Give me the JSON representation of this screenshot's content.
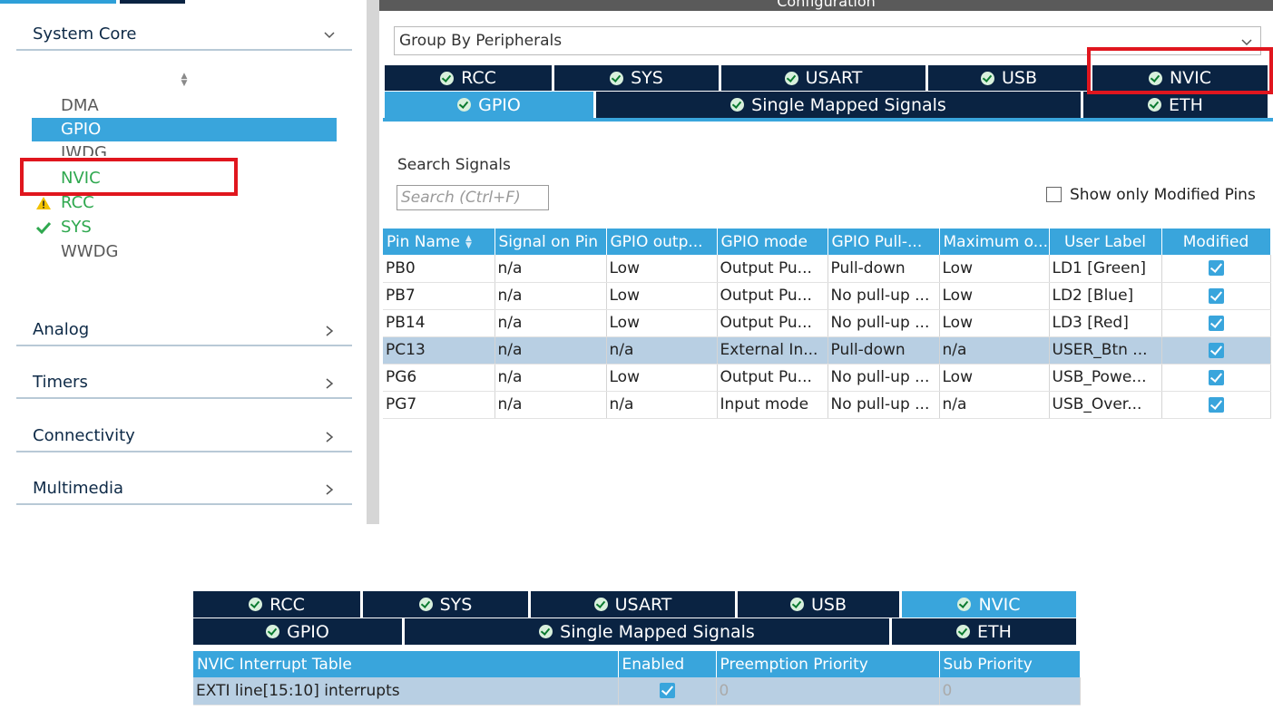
{
  "sidebar": {
    "system_core": "System Core",
    "core_items": [
      {
        "label": "DMA",
        "status": "none"
      },
      {
        "label": "GPIO",
        "status": "selected"
      },
      {
        "label": "IWDG",
        "status": "none"
      },
      {
        "label": "NVIC",
        "status": "ok"
      },
      {
        "label": "RCC",
        "status": "warning"
      },
      {
        "label": "SYS",
        "status": "ok"
      },
      {
        "label": "WWDG",
        "status": "none"
      }
    ],
    "categories": [
      "Analog",
      "Timers",
      "Connectivity",
      "Multimedia"
    ]
  },
  "config": {
    "title": "Configuration",
    "group_by": "Group By Peripherals",
    "tabs_row1": [
      "RCC",
      "SYS",
      "USART",
      "USB",
      "NVIC"
    ],
    "tabs_row2": [
      "GPIO",
      "Single Mapped Signals",
      "ETH"
    ],
    "active_tab": "GPIO",
    "search_label": "Search Signals",
    "search_placeholder": "Search (Ctrl+F)",
    "show_modified": "Show only Modified Pins",
    "columns": [
      "Pin Name",
      "Signal on Pin",
      "GPIO outp...",
      "GPIO mode",
      "GPIO Pull-...",
      "Maximum o...",
      "User Label",
      "Modified"
    ],
    "rows": [
      [
        "PB0",
        "n/a",
        "Low",
        "Output Pu...",
        "Pull-down",
        "Low",
        "LD1 [Green]"
      ],
      [
        "PB7",
        "n/a",
        "Low",
        "Output Pu...",
        "No pull-up ...",
        "Low",
        "LD2 [Blue]"
      ],
      [
        "PB14",
        "n/a",
        "Low",
        "Output Pu...",
        "No pull-up ...",
        "Low",
        "LD3 [Red]"
      ],
      [
        "PC13",
        "n/a",
        "n/a",
        "External In...",
        "Pull-down",
        "n/a",
        "USER_Btn ..."
      ],
      [
        "PG6",
        "n/a",
        "Low",
        "Output Pu...",
        "No pull-up ...",
        "Low",
        "USB_Powe..."
      ],
      [
        "PG7",
        "n/a",
        "n/a",
        "Input mode",
        "No pull-up ...",
        "n/a",
        "USB_Over..."
      ]
    ],
    "highlighted_row": 3
  },
  "nvic_excerpt": {
    "tabs_row1": [
      "RCC",
      "SYS",
      "USART",
      "USB",
      "NVIC"
    ],
    "tabs_row2": [
      "GPIO",
      "Single Mapped Signals",
      "ETH"
    ],
    "active_tab": "NVIC",
    "columns": [
      "NVIC Interrupt Table",
      "Enabled",
      "Preemption Priority",
      "Sub Priority"
    ],
    "rows": [
      {
        "name": "EXTI line[15:10] interrupts",
        "enabled": true,
        "preemption": "0",
        "sub": "0"
      }
    ]
  },
  "colors": {
    "navy": "#0a2342",
    "accent": "#39a5dc",
    "highlight": "#e0161e",
    "ok": "#2fa84f",
    "warning": "#f2c200"
  }
}
